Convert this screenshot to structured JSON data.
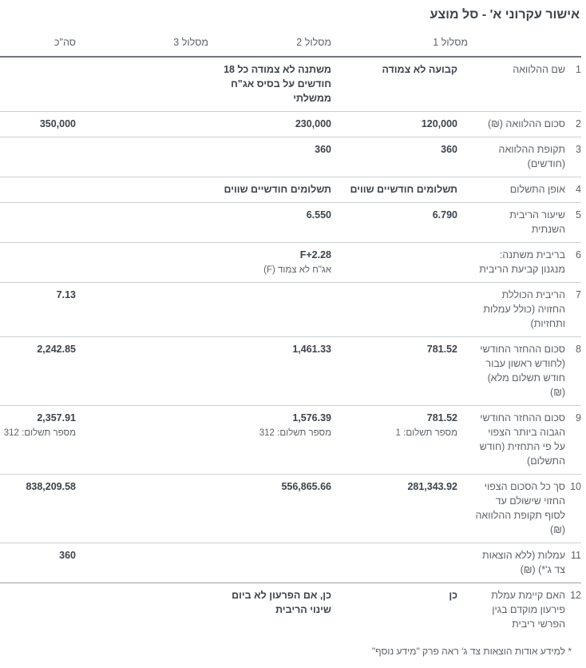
{
  "page": {
    "title": "אישור עקרוני א' - סל מוצע"
  },
  "colors": {
    "text1": "#3d434b",
    "text2": "#5c6268",
    "lineLight": "#ccd1d5",
    "lineDark": "#70767c",
    "lineMedium": "#9aa0a6"
  },
  "table": {
    "columns": [
      "מסלול 1",
      "מסלול 2",
      "מסלול 3",
      "סה\"כ"
    ],
    "rows": [
      {
        "num": "1",
        "label": "שם ההלוואה",
        "track1": "קבועה לא צמודה",
        "track1_sub": "",
        "track2": "משתנה לא צמודה כל 18 חודשים על בסיס אג\"ח ממשלתי",
        "track2_sub": "",
        "track3": "",
        "total": "",
        "total_sub": ""
      },
      {
        "num": "2",
        "label": "סכום ההלוואה (₪)",
        "track1": "120,000",
        "track1_sub": "",
        "track2": "230,000",
        "track2_sub": "",
        "track3": "",
        "total": "350,000",
        "total_sub": ""
      },
      {
        "num": "3",
        "label": "תקופת ההלוואה (חודשים)",
        "track1": "360",
        "track1_sub": "",
        "track2": "360",
        "track2_sub": "",
        "track3": "",
        "total": "",
        "total_sub": ""
      },
      {
        "num": "4",
        "label": "אופן התשלום",
        "track1": "תשלומים חודשיים שווים",
        "track1_sub": "",
        "track2": "תשלומים חודשיים שווים",
        "track2_sub": "",
        "track3": "",
        "total": "",
        "total_sub": ""
      },
      {
        "num": "5",
        "label": "שיעור הריבית השנתית",
        "track1": "6.790",
        "track1_sub": "",
        "track2": "6.550",
        "track2_sub": "",
        "track3": "",
        "total": "",
        "total_sub": ""
      },
      {
        "num": "6",
        "label": "בריבית משתנה: מנגנון קביעת הריבית",
        "track1": "",
        "track1_sub": "",
        "track2": "F+2.28",
        "track2_sub": "אג\"ח לא צמוד (F)",
        "track3": "",
        "total": "",
        "total_sub": ""
      },
      {
        "num": "7",
        "label": "הריבית הכוללת החזויה (כולל עמלות ותחזיות)",
        "track1": "",
        "track1_sub": "",
        "track2": "",
        "track2_sub": "",
        "track3": "",
        "total": "7.13",
        "total_sub": ""
      },
      {
        "num": "8",
        "label": "סכום ההחזר החודשי (לחודש ראשון עבור חודש תשלום מלא) (₪)",
        "track1": "781.52",
        "track1_sub": "",
        "track2": "1,461.33",
        "track2_sub": "",
        "track3": "",
        "total": "2,242.85",
        "total_sub": ""
      },
      {
        "num": "9",
        "label": "סכום ההחזר החודשי הגבוה ביותר הצפוי על פי התחזית (חודש התשלום)",
        "track1": "781.52",
        "track1_sub": "מספר תשלום: 1",
        "track2": "1,576.39",
        "track2_sub": "מספר תשלום: 312",
        "track3": "",
        "total": "2,357.91",
        "total_sub": "מספר תשלום: 312"
      },
      {
        "num": "10",
        "label": "סך כל הסכום הצפוי החזוי שישולם עד לסוף תקופת ההלוואה (₪)",
        "track1": "281,343.92",
        "track1_sub": "",
        "track2": "556,865.66",
        "track2_sub": "",
        "track3": "",
        "total": "838,209.58",
        "total_sub": ""
      },
      {
        "num": "11",
        "label": "עמלות (ללא הוצאות צד ג'*) (₪)",
        "track1": "",
        "track1_sub": "",
        "track2": "",
        "track2_sub": "",
        "track3": "",
        "total": "360",
        "total_sub": ""
      },
      {
        "num": "12",
        "label": "האם קיימת עמלת פירעון מוקדם בגין הפרשי ריבית",
        "track1": "כן",
        "track1_sub": "",
        "track2": "כן, אם הפרעון לא ביום שינוי הריבית",
        "track2_sub": "",
        "track3": "",
        "total": "",
        "total_sub": ""
      }
    ]
  },
  "footnote": "* למידע אודות הוצאות צד ג' ראה פרק \"מידע נוסף\""
}
